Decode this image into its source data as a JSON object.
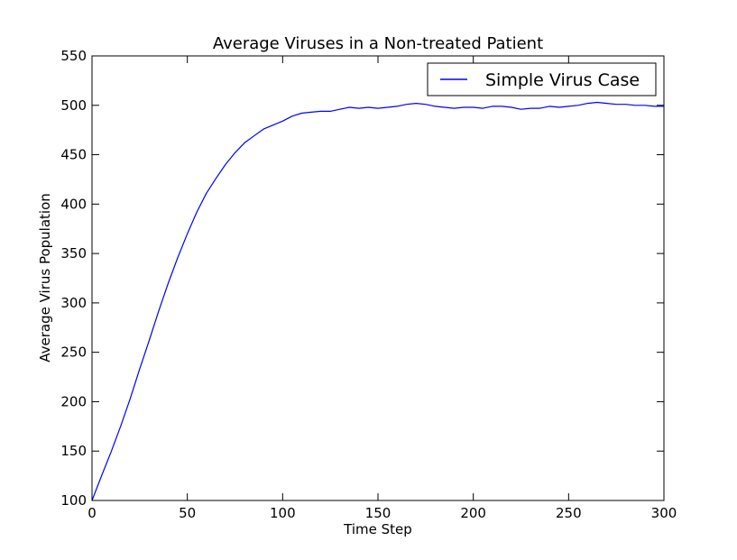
{
  "chart_data": {
    "type": "line",
    "title": "Average Viruses in a Non-treated Patient",
    "xlabel": "Time Step",
    "ylabel": "Average Virus Population",
    "xlim": [
      0,
      300
    ],
    "ylim": [
      100,
      550
    ],
    "xticks": [
      0,
      50,
      100,
      150,
      200,
      250,
      300
    ],
    "yticks": [
      100,
      150,
      200,
      250,
      300,
      350,
      400,
      450,
      500,
      550
    ],
    "grid": false,
    "legend_position": "top-right",
    "series": [
      {
        "name": "Simple Virus Case",
        "color": "#0000ff",
        "x": [
          0,
          5,
          10,
          15,
          20,
          25,
          30,
          35,
          40,
          45,
          50,
          55,
          60,
          65,
          70,
          75,
          80,
          85,
          90,
          95,
          100,
          105,
          110,
          115,
          120,
          125,
          130,
          135,
          140,
          145,
          150,
          155,
          160,
          165,
          170,
          175,
          180,
          185,
          190,
          195,
          200,
          205,
          210,
          215,
          220,
          225,
          230,
          235,
          240,
          245,
          250,
          255,
          260,
          265,
          270,
          275,
          280,
          285,
          290,
          295,
          300
        ],
        "values": [
          100,
          125,
          149,
          175,
          203,
          233,
          262,
          292,
          320,
          346,
          370,
          392,
          411,
          426,
          440,
          452,
          462,
          469,
          476,
          480,
          484,
          489,
          492,
          493,
          494,
          494,
          496,
          498,
          497,
          498,
          497,
          498,
          499,
          501,
          502,
          501,
          499,
          498,
          497,
          498,
          498,
          497,
          499,
          499,
          498,
          496,
          497,
          497,
          499,
          498,
          499,
          500,
          502,
          503,
          502,
          501,
          501,
          500,
          500,
          499,
          499
        ]
      }
    ]
  }
}
